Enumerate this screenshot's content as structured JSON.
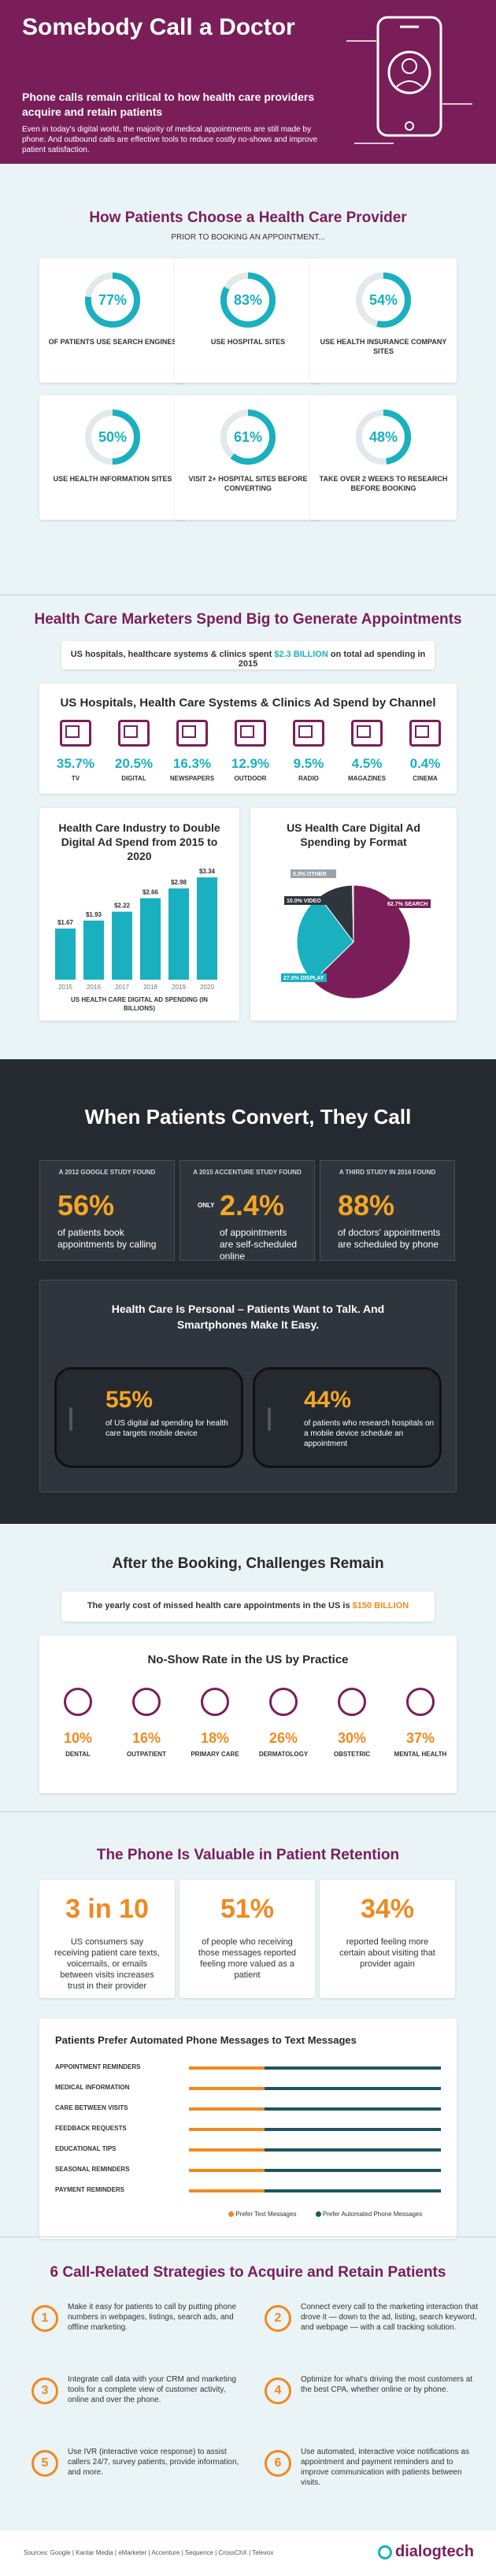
{
  "header": {
    "title": "Somebody Call a Doctor",
    "lead": "Phone calls remain critical to how health care providers acquire and retain patients",
    "body": "Even in today's digital world, the majority of medical appointments are still made by phone. And outbound calls are effective tools to reduce costly no-shows and improve patient satisfaction."
  },
  "choose": {
    "title": "How Patients Choose a Health Care Provider",
    "subtitle": "PRIOR TO BOOKING AN APPOINTMENT...",
    "items": [
      {
        "pct": "77%",
        "value": 77,
        "label": "OF PATIENTS USE SEARCH ENGINES"
      },
      {
        "pct": "83%",
        "value": 83,
        "label": "USE HOSPITAL SITES"
      },
      {
        "pct": "54%",
        "value": 54,
        "label": "USE HEALTH INSURANCE COMPANY SITES"
      },
      {
        "pct": "50%",
        "value": 50,
        "label": "USE HEALTH INFORMATION SITES"
      },
      {
        "pct": "61%",
        "value": 61,
        "label": "VISIT 2+ HOSPITAL SITES BEFORE CONVERTING"
      },
      {
        "pct": "48%",
        "value": 48,
        "label": "TAKE OVER 2 WEEKS TO RESEARCH BEFORE BOOKING"
      }
    ]
  },
  "spend": {
    "title": "Health Care Marketers Spend Big to Generate Appointments",
    "callout_pre": "US hospitals, healthcare systems & clinics spent ",
    "callout_amount": "$2.3 BILLION",
    "callout_post": " on total ad spending in 2015",
    "channel_title": "US Hospitals, Health Care Systems & Clinics Ad Spend by Channel",
    "channels": [
      {
        "pct": "35.7%",
        "label": "TV",
        "icon": "tv-icon"
      },
      {
        "pct": "20.5%",
        "label": "DIGITAL",
        "icon": "laptop-icon"
      },
      {
        "pct": "16.3%",
        "label": "NEWSPAPERS",
        "icon": "newspaper-icon"
      },
      {
        "pct": "12.9%",
        "label": "OUTDOOR",
        "icon": "billboard-icon"
      },
      {
        "pct": "9.5%",
        "label": "RADIO",
        "icon": "radio-icon"
      },
      {
        "pct": "4.5%",
        "label": "MAGAZINES",
        "icon": "magazine-icon"
      },
      {
        "pct": "0.4%",
        "label": "CINEMA",
        "icon": "film-icon"
      }
    ]
  },
  "chart_data": [
    {
      "type": "bar",
      "title": "Health Care Industry to Double Digital Ad Spend from 2015 to 2020",
      "categories": [
        "2015",
        "2016",
        "2017",
        "2018",
        "2019",
        "2020"
      ],
      "value_labels": [
        "$1.67",
        "$1.93",
        "$2.22",
        "$2.66",
        "$2.98",
        "$3.34"
      ],
      "values": [
        1.67,
        1.93,
        2.22,
        2.66,
        2.98,
        3.34
      ],
      "xlabel": "US HEALTH CARE DIGITAL AD SPENDING (IN BILLIONS)",
      "ylim": [
        0,
        3.6
      ],
      "color": "#1ab0c0"
    },
    {
      "type": "pie",
      "title": "US Health Care Digital Ad Spending by Format",
      "slices": [
        {
          "label": "SEARCH",
          "value": 62.7,
          "text": "62.7% SEARCH",
          "color": "#7a1e5a"
        },
        {
          "label": "DISPLAY",
          "value": 27.0,
          "text": "27.0% DISPLAY",
          "color": "#1ab0c0"
        },
        {
          "label": "VIDEO",
          "value": 10.0,
          "text": "10.0% VIDEO",
          "color": "#2f353c"
        },
        {
          "label": "OTHER",
          "value": 0.3,
          "text": "0.3% OTHER",
          "color": "#9aa3ab"
        }
      ]
    }
  ],
  "convert": {
    "title": "When Patients Convert, They Call",
    "stats": [
      {
        "source": "A 2012 GOOGLE STUDY FOUND",
        "prefix": "",
        "big": "56%",
        "desc": "of patients book appointments by calling"
      },
      {
        "source": "A 2015 ACCENTURE STUDY FOUND",
        "prefix": "ONLY",
        "big": "2.4%",
        "desc": "of appointments are self-scheduled online"
      },
      {
        "source": "A THIRD STUDY IN 2016 FOUND",
        "prefix": "",
        "big": "88%",
        "desc": "of doctors' appointments are scheduled by phone"
      }
    ],
    "personal_title": "Health Care Is Personal – Patients Want to Talk. And Smartphones Make It Easy.",
    "phones": [
      {
        "big": "55%",
        "desc": "of US digital ad spending for health care targets mobile device"
      },
      {
        "big": "44%",
        "desc": "of patients who research hospitals on a mobile device schedule an appointment"
      }
    ]
  },
  "after": {
    "title": "After the Booking, Challenges Remain",
    "callout_pre": "The yearly cost of missed health care appointments in the US is ",
    "callout_amount": "$150 BILLION",
    "noshow_title": "No-Show Rate in the US by Practice",
    "practices": [
      {
        "pct": "10%",
        "label": "DENTAL",
        "icon": "tooth-icon"
      },
      {
        "pct": "16%",
        "label": "OUTPATIENT",
        "icon": "crutch-icon"
      },
      {
        "pct": "18%",
        "label": "PRIMARY CARE",
        "icon": "doctor-icon"
      },
      {
        "pct": "26%",
        "label": "DERMATOLOGY",
        "icon": "skin-icon"
      },
      {
        "pct": "30%",
        "label": "OBSTETRIC",
        "icon": "pregnancy-icon"
      },
      {
        "pct": "37%",
        "label": "MENTAL HEALTH",
        "icon": "brain-icon"
      }
    ]
  },
  "retention": {
    "title": "The Phone Is Valuable in Patient Retention",
    "stats": [
      {
        "big": "3 in 10",
        "desc": "US consumers say receiving patient care texts, voicemails, or emails between visits increases trust in their provider"
      },
      {
        "big": "51%",
        "desc": "of people who receiving those messages reported feeling more valued as a patient"
      },
      {
        "big": "34%",
        "desc": "reported feeling more certain about visiting that provider again"
      }
    ],
    "prefer_title": "Patients Prefer Automated Phone Messages to Text Messages",
    "rows": [
      {
        "label": "APPOINTMENT REMINDERS",
        "text_share": 0.3
      },
      {
        "label": "MEDICAL INFORMATION",
        "text_share": 0.3
      },
      {
        "label": "CARE BETWEEN VISITS",
        "text_share": 0.3
      },
      {
        "label": "FEEDBACK REQUESTS",
        "text_share": 0.3
      },
      {
        "label": "EDUCATIONAL TIPS",
        "text_share": 0.3
      },
      {
        "label": "SEASONAL REMINDERS",
        "text_share": 0.3
      },
      {
        "label": "PAYMENT REMINDERS",
        "text_share": 0.3
      }
    ],
    "legend_text": "Prefer Text Messages",
    "legend_phone": "Prefer Automated Phone Messages",
    "color_text": "#f08a1f",
    "color_phone": "#1f5560"
  },
  "strategies": {
    "title": "6 Call-Related Strategies to Acquire and Retain Patients",
    "items": [
      {
        "num": "1",
        "text": "Make it easy for patients to call by putting phone numbers in webpages, listings, search ads, and offline marketing."
      },
      {
        "num": "2",
        "text": "Connect every call to the marketing interaction that drove it — down to the ad, listing, search keyword, and webpage — with a call tracking solution."
      },
      {
        "num": "3",
        "text": "Integrate call data with your CRM and marketing tools for a complete view of customer activity, online and over the phone."
      },
      {
        "num": "4",
        "text": "Optimize for what's driving the most customers at the best CPA, whether online or by phone."
      },
      {
        "num": "5",
        "text": "Use IVR (interactive voice response) to assist callers 24/7, survey patients, provide information, and more."
      },
      {
        "num": "6",
        "text": "Use automated, interactive voice notifications as appointment and payment reminders and to improve communication with patients between visits."
      }
    ]
  },
  "footer": {
    "sources": "Sources: Google | Kantar Media | eMarketer | Accenture | Sequence | CrossChX | Televox",
    "brand": "dialogtech"
  }
}
